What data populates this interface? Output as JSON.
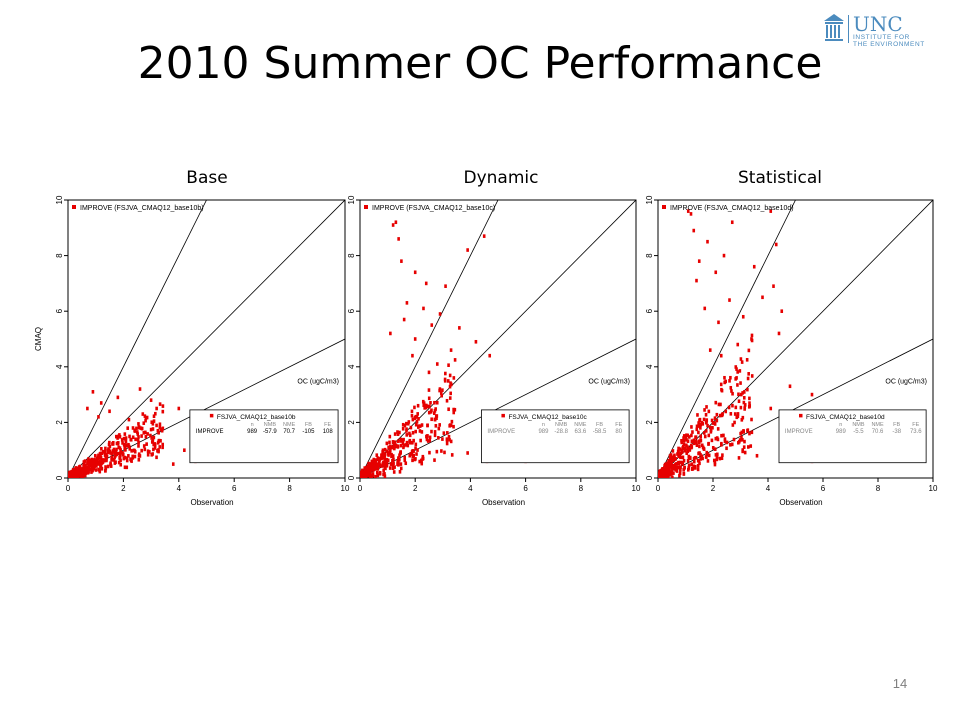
{
  "slide": {
    "title": "2010 Summer OC Performance",
    "page_number": "14"
  },
  "logo": {
    "line1": "UNC",
    "line2": "INSTITUTE FOR",
    "line3": "THE ENVIRONMENT",
    "brand_color": "#4b8bbe"
  },
  "chart_data": [
    {
      "type": "scatter",
      "title": "Base",
      "xlabel": "Observation",
      "ylabel": "CMAQ",
      "xlim": [
        0,
        10
      ],
      "ylim": [
        0,
        10
      ],
      "xticks": [
        "0",
        "2",
        "4",
        "6",
        "8",
        "10"
      ],
      "yticks": [
        "0",
        "2",
        "4",
        "6",
        "8",
        "10"
      ],
      "reference_lines": [
        {
          "slope": 2
        },
        {
          "slope": 1
        },
        {
          "slope": 0.5
        }
      ],
      "legend": "IMPROVE (FSJVA_CMAQ12_base10b)",
      "species_label": "OC (ugC/m3)",
      "stats_title": "FSJVA_CMAQ12_base10b",
      "stats_headers": [
        "",
        "n",
        "NMB",
        "NME",
        "FB",
        "FE"
      ],
      "stats_row": [
        "IMPROVE",
        "989",
        "-57.9",
        "70.7",
        "-105",
        "108"
      ],
      "series_color": "#e60000",
      "spread": 0.45,
      "outliers": [
        [
          0.9,
          3.1
        ],
        [
          1.2,
          2.7
        ],
        [
          1.5,
          2.4
        ],
        [
          2.6,
          3.2
        ],
        [
          3.0,
          2.8
        ],
        [
          3.2,
          2.5
        ],
        [
          4.0,
          2.5
        ],
        [
          1.8,
          2.9
        ],
        [
          0.7,
          2.5
        ],
        [
          2.2,
          2.1
        ],
        [
          3.4,
          1.7
        ],
        [
          4.2,
          1.0
        ],
        [
          5.0,
          0.8
        ],
        [
          6.2,
          0.65
        ],
        [
          4.6,
          0.6
        ],
        [
          3.8,
          0.5
        ],
        [
          2.7,
          2.3
        ],
        [
          1.1,
          2.2
        ]
      ]
    },
    {
      "type": "scatter",
      "title": "Dynamic",
      "xlabel": "Observation",
      "ylabel": "",
      "xlim": [
        0,
        10
      ],
      "ylim": [
        0,
        10
      ],
      "xticks": [
        "0",
        "2",
        "4",
        "6",
        "8",
        "10"
      ],
      "yticks": [
        "0",
        "2",
        "4",
        "6",
        "8",
        "10"
      ],
      "reference_lines": [
        {
          "slope": 2
        },
        {
          "slope": 1
        },
        {
          "slope": 0.5
        }
      ],
      "legend": "IMPROVE (FSJVA_CMAQ12_base10c)",
      "species_label": "OC (ugC/m3)",
      "stats_title": "FSJVA_CMAQ12_base10c",
      "stats_headers": [
        "",
        "n",
        "NMB",
        "NME",
        "FB",
        "FE"
      ],
      "stats_row": [
        "IMPROVE",
        "989",
        "-28.8",
        "63.6",
        "-58.5",
        "80"
      ],
      "series_color": "#e60000",
      "spread": 0.85,
      "outliers": [
        [
          1.2,
          9.1
        ],
        [
          1.3,
          9.2
        ],
        [
          1.4,
          8.6
        ],
        [
          4.5,
          8.7
        ],
        [
          3.9,
          8.2
        ],
        [
          1.5,
          7.8
        ],
        [
          2.0,
          7.4
        ],
        [
          2.4,
          7.0
        ],
        [
          3.1,
          6.9
        ],
        [
          1.7,
          6.3
        ],
        [
          2.3,
          6.1
        ],
        [
          2.9,
          5.9
        ],
        [
          1.6,
          5.7
        ],
        [
          2.6,
          5.5
        ],
        [
          3.6,
          5.4
        ],
        [
          1.1,
          5.2
        ],
        [
          2.0,
          5.0
        ],
        [
          4.2,
          4.9
        ],
        [
          4.7,
          4.4
        ],
        [
          3.3,
          4.6
        ],
        [
          1.9,
          4.4
        ],
        [
          2.8,
          4.1
        ],
        [
          5.5,
          0.7
        ],
        [
          4.6,
          0.6
        ],
        [
          3.9,
          0.9
        ],
        [
          6.0,
          0.6
        ],
        [
          3.4,
          3.6
        ],
        [
          2.5,
          3.8
        ]
      ]
    },
    {
      "type": "scatter",
      "title": "Statistical",
      "xlabel": "Observation",
      "ylabel": "",
      "xlim": [
        0,
        10
      ],
      "ylim": [
        0,
        10
      ],
      "xticks": [
        "0",
        "2",
        "4",
        "6",
        "8",
        "10"
      ],
      "yticks": [
        "0",
        "2",
        "4",
        "6",
        "8",
        "10"
      ],
      "reference_lines": [
        {
          "slope": 2
        },
        {
          "slope": 1
        },
        {
          "slope": 0.5
        }
      ],
      "legend": "IMPROVE (FSJVA_CMAQ12_base10d)",
      "species_label": "OC (ugC/m3)",
      "stats_title": "FSJVA_CMAQ12_base10d",
      "stats_headers": [
        "",
        "n",
        "NMB",
        "NME",
        "FB",
        "FE"
      ],
      "stats_row": [
        "IMPROVE",
        "989",
        "-5.5",
        "70.6",
        "-38",
        "73.6"
      ],
      "series_color": "#e60000",
      "spread": 1.05,
      "outliers": [
        [
          1.1,
          9.6
        ],
        [
          1.2,
          9.5
        ],
        [
          4.1,
          9.6
        ],
        [
          2.7,
          9.2
        ],
        [
          1.3,
          8.9
        ],
        [
          1.8,
          8.5
        ],
        [
          4.3,
          8.4
        ],
        [
          2.4,
          8.0
        ],
        [
          1.5,
          7.8
        ],
        [
          3.5,
          7.6
        ],
        [
          2.1,
          7.4
        ],
        [
          1.4,
          7.1
        ],
        [
          4.2,
          6.9
        ],
        [
          3.8,
          6.5
        ],
        [
          2.6,
          6.4
        ],
        [
          1.7,
          6.1
        ],
        [
          4.5,
          6.0
        ],
        [
          3.1,
          5.8
        ],
        [
          2.2,
          5.6
        ],
        [
          4.4,
          5.2
        ],
        [
          3.4,
          5.0
        ],
        [
          2.9,
          4.8
        ],
        [
          4.8,
          3.3
        ],
        [
          5.6,
          3.0
        ],
        [
          4.1,
          2.5
        ],
        [
          4.9,
          0.7
        ],
        [
          5.6,
          0.6
        ],
        [
          3.6,
          0.8
        ],
        [
          2.3,
          4.4
        ],
        [
          1.9,
          4.6
        ]
      ]
    }
  ]
}
